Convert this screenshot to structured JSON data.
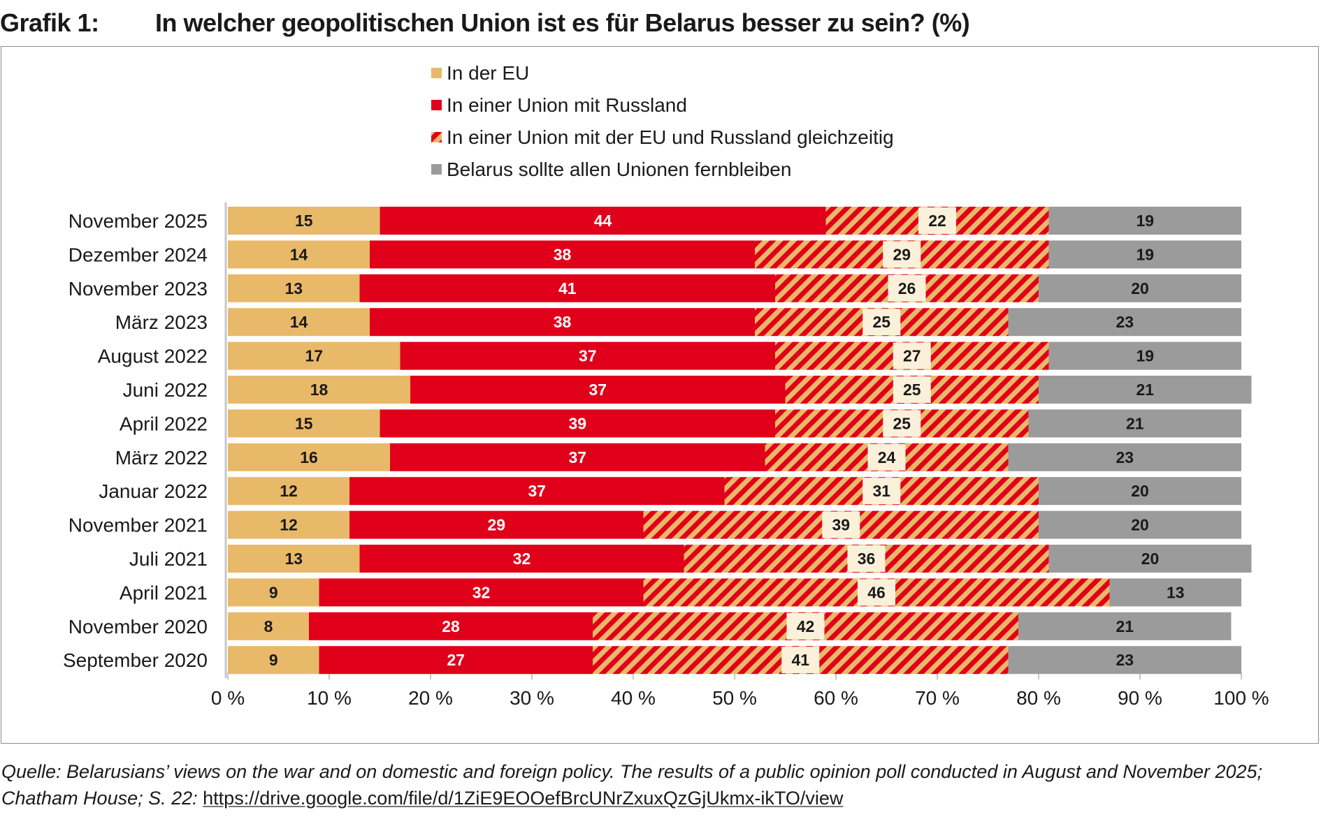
{
  "title": {
    "label": "Grafik 1:",
    "text": "In welcher geopolitischen Union ist es für Belarus besser zu sein? (%)"
  },
  "source": {
    "line1": "Quelle: Belarusians’ views on the war and on domestic and foreign policy. The results of a public opinion poll conducted in August and November 2025;",
    "line2_prefix": "Chatham House; S. 22: ",
    "link": "https://drive.google.com/file/d/1ZiE9EOOefBrcUNrZxuxQzGjUkmx-ikTO/view"
  },
  "colors": {
    "eu": "#E9B96A",
    "russia": "#E1001A",
    "stripe_a": "#E9B96A",
    "stripe_b": "#E1001A",
    "none": "#9B9B9B",
    "label_box": "#FBF1DA"
  },
  "chart_data": {
    "type": "bar",
    "orientation": "horizontal",
    "stacked": true,
    "legend_position": "top-center",
    "xlim": [
      0,
      100
    ],
    "x_ticks": [
      "0 %",
      "10 %",
      "20 %",
      "30 %",
      "40 %",
      "50 %",
      "60 %",
      "70 %",
      "80 %",
      "90 %",
      "100 %"
    ],
    "categories": [
      "November 2025",
      "Dezember 2024",
      "November 2023",
      "März 2023",
      "August 2022",
      "Juni 2022",
      "April 2022",
      "März 2022",
      "Januar 2022",
      "November 2021",
      "Juli 2021",
      "April 2021",
      "November 2020",
      "September 2020"
    ],
    "series": [
      {
        "key": "eu",
        "name": "In der EU",
        "values": [
          15,
          14,
          13,
          14,
          17,
          18,
          15,
          16,
          12,
          12,
          13,
          9,
          8,
          9
        ]
      },
      {
        "key": "russia",
        "name": "In einer Union mit Russland",
        "values": [
          44,
          38,
          41,
          38,
          37,
          37,
          39,
          37,
          37,
          29,
          32,
          32,
          28,
          27
        ]
      },
      {
        "key": "both",
        "name": "In einer Union mit der EU und Russland gleichzeitig",
        "values": [
          22,
          29,
          26,
          25,
          27,
          25,
          25,
          24,
          31,
          39,
          36,
          46,
          42,
          41
        ]
      },
      {
        "key": "none",
        "name": "Belarus sollte allen Unionen fernbleiben",
        "values": [
          19,
          19,
          20,
          23,
          19,
          21,
          21,
          23,
          20,
          20,
          20,
          13,
          21,
          23
        ]
      }
    ]
  }
}
